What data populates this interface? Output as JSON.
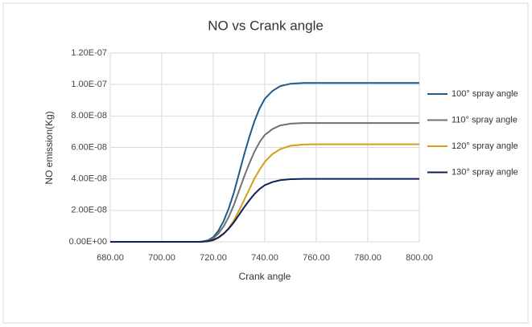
{
  "chart_data": {
    "type": "line",
    "title": "NO vs Crank angle",
    "x_label": "Crank angle",
    "y_label": "NO emission(Kg)",
    "x": [
      680,
      700,
      715,
      718,
      720,
      722,
      724,
      726,
      728,
      730,
      732,
      734,
      736,
      738,
      740,
      743,
      746,
      750,
      755,
      760,
      770,
      780,
      790,
      800
    ],
    "series": [
      {
        "name": "100° spray angle",
        "color": "#1f5a8a",
        "values": [
          0,
          0,
          0,
          1.01e-09,
          3.03e-09,
          7.07e-09,
          1.313e-08,
          2.121e-08,
          3.131e-08,
          4.343e-08,
          5.555e-08,
          6.666e-08,
          7.676e-08,
          8.484e-08,
          9.09e-08,
          9.595e-08,
          9.898e-08,
          1.005e-07,
          1.01e-07,
          1.01e-07,
          1.01e-07,
          1.01e-07,
          1.01e-07,
          1.01e-07
        ]
      },
      {
        "name": "110° spray angle",
        "color": "#707070",
        "values": [
          0,
          0,
          0,
          7.55e-10,
          2.265e-09,
          5.285e-09,
          9.815e-09,
          1.5855e-08,
          2.3405e-08,
          3.2465e-08,
          4.1525e-08,
          4.983e-08,
          5.738e-08,
          6.342e-08,
          6.795e-08,
          7.1725e-08,
          7.399e-08,
          7.512e-08,
          7.55e-08,
          7.55e-08,
          7.55e-08,
          7.55e-08,
          7.55e-08,
          7.55e-08
        ]
      },
      {
        "name": "120° spray angle",
        "color": "#d4a017",
        "values": [
          0,
          0,
          0,
          3.1e-10,
          9.3e-10,
          2.48e-09,
          4.96e-09,
          8.68e-09,
          1.364e-08,
          1.984e-08,
          2.666e-08,
          3.348e-08,
          4.03e-08,
          4.588e-08,
          5.084e-08,
          5.58e-08,
          5.89e-08,
          6.107e-08,
          6.188e-08,
          6.2e-08,
          6.2e-08,
          6.2e-08,
          6.2e-08,
          6.2e-08
        ]
      },
      {
        "name": "130° spray angle",
        "color": "#10205e",
        "values": [
          0,
          0,
          0,
          4e-10,
          1.2e-09,
          2.8e-09,
          5.2e-09,
          8.4e-09,
          1.24e-08,
          1.72e-08,
          2.2e-08,
          2.64e-08,
          3.04e-08,
          3.36e-08,
          3.6e-08,
          3.8e-08,
          3.92e-08,
          3.98e-08,
          4e-08,
          4e-08,
          4e-08,
          4e-08,
          4e-08,
          4e-08
        ]
      }
    ],
    "xlim": [
      680,
      800
    ],
    "xticks": [
      {
        "value": 680,
        "label": "680.00"
      },
      {
        "value": 700,
        "label": "700.00"
      },
      {
        "value": 720,
        "label": "720.00"
      },
      {
        "value": 740,
        "label": "740.00"
      },
      {
        "value": 760,
        "label": "760.00"
      },
      {
        "value": 780,
        "label": "780.00"
      },
      {
        "value": 800,
        "label": "800.00"
      }
    ],
    "ylim": [
      0,
      1.2e-07
    ],
    "yticks": [
      {
        "value": 0,
        "label": "0.00E+00"
      },
      {
        "value": 2e-08,
        "label": "2.00E-08"
      },
      {
        "value": 4e-08,
        "label": "4.00E-08"
      },
      {
        "value": 6e-08,
        "label": "6.00E-08"
      },
      {
        "value": 8e-08,
        "label": "8.00E-08"
      },
      {
        "value": 1e-07,
        "label": "1.00E-07"
      },
      {
        "value": 1.2e-07,
        "label": "1.20E-07"
      }
    ],
    "grid": true,
    "legend": "right"
  }
}
